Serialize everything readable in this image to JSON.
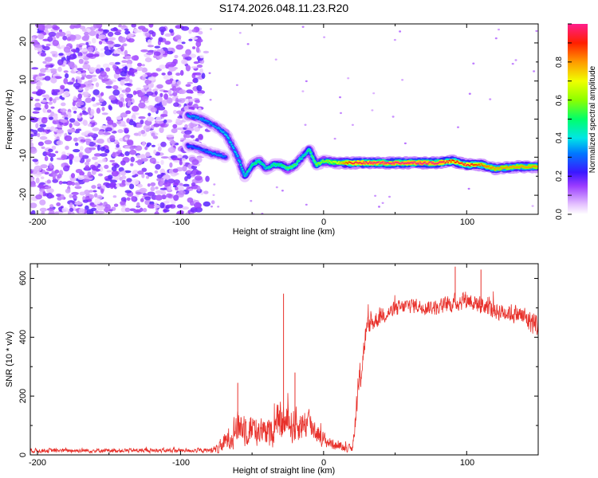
{
  "title": "S174.2026.048.11.23.R20",
  "chart_data": [
    {
      "type": "heatmap",
      "xlabel": "Height of straight line (km)",
      "ylabel": "Frequency (Hz)",
      "xlim": [
        -205,
        150
      ],
      "ylim": [
        -25,
        25
      ],
      "xticks": [
        "-200",
        "-100",
        "0",
        "100"
      ],
      "yticks": [
        "20",
        "10",
        "0",
        "-10",
        "-20"
      ],
      "colorbar": {
        "label": "Normalized spectral amplitude",
        "range": [
          0,
          1
        ],
        "ticks": [
          "0.0",
          "0.2",
          "0.4",
          "0.6",
          "0.8"
        ]
      },
      "ridge": {
        "x": [
          -95,
          -85,
          -75,
          -68,
          -60,
          -55,
          -50,
          -45,
          -40,
          -35,
          -30,
          -25,
          -20,
          -15,
          -10,
          -5,
          0,
          10,
          20,
          40,
          60,
          80,
          90,
          100,
          110,
          120,
          135,
          150
        ],
        "freq": [
          1,
          0,
          -2,
          -4,
          -10,
          -15,
          -12,
          -11,
          -13,
          -12,
          -12,
          -13,
          -12,
          -10,
          -8,
          -12,
          -11,
          -11.5,
          -11.5,
          -11.5,
          -11.5,
          -11.5,
          -11,
          -12,
          -12,
          -13,
          -12.5,
          -12.5
        ],
        "amplitude": [
          0.35,
          0.35,
          0.35,
          0.4,
          0.4,
          0.45,
          0.5,
          0.5,
          0.45,
          0.5,
          0.5,
          0.55,
          0.55,
          0.45,
          0.5,
          0.6,
          0.6,
          0.7,
          0.95,
          1.0,
          1.0,
          1.0,
          0.9,
          0.95,
          0.85,
          0.8,
          0.8,
          0.8
        ]
      },
      "secondary_ridge": {
        "x": [
          -95,
          -85,
          -78,
          -72,
          -68
        ],
        "freq": [
          -7,
          -8,
          -9,
          -9.5,
          -10
        ],
        "amplitude": [
          0.3,
          0.3,
          0.35,
          0.35,
          0.3
        ]
      },
      "noise_region": {
        "x": [
          -205,
          -85
        ],
        "amplitude": 0.15
      }
    },
    {
      "type": "line",
      "xlabel": "Height of straight line (km)",
      "ylabel": "SNR (10 * v/v)",
      "xlim": [
        -205,
        150
      ],
      "ylim": [
        0,
        650
      ],
      "xticks": [
        "-200",
        "-100",
        "0",
        "100"
      ],
      "yticks": [
        "600",
        "400",
        "200",
        "0"
      ],
      "color": "#e8302a",
      "envelope": {
        "x": [
          -205,
          -80,
          -75,
          -70,
          -60,
          -50,
          -40,
          -30,
          -20,
          -10,
          0,
          10,
          20,
          25,
          30,
          40,
          60,
          80,
          100,
          120,
          135,
          150
        ],
        "mean": [
          15,
          15,
          20,
          35,
          100,
          90,
          70,
          110,
          100,
          110,
          50,
          30,
          20,
          250,
          430,
          475,
          510,
          500,
          530,
          490,
          480,
          440
        ],
        "spread": [
          10,
          10,
          20,
          40,
          80,
          80,
          60,
          90,
          80,
          70,
          35,
          20,
          15,
          80,
          50,
          40,
          35,
          35,
          45,
          40,
          45,
          60
        ]
      },
      "spikes": [
        {
          "x": -28,
          "y": 548
        },
        {
          "x": -20,
          "y": 280
        },
        {
          "x": -60,
          "y": 245
        },
        {
          "x": 92,
          "y": 640
        },
        {
          "x": 110,
          "y": 630
        }
      ]
    }
  ]
}
